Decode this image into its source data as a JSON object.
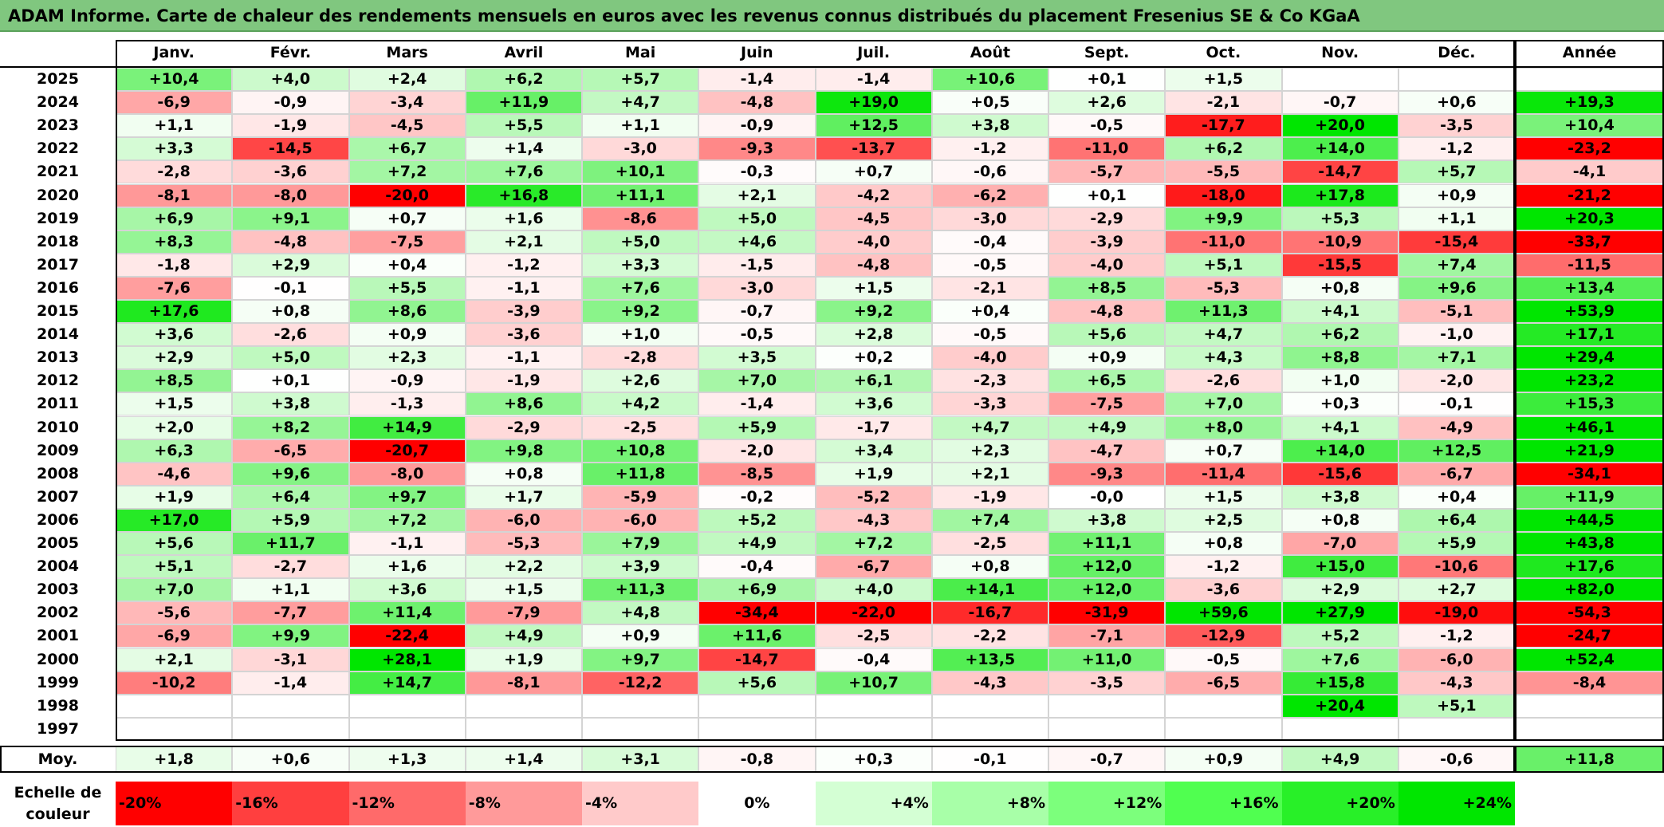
{
  "title": "ADAM Informe. Carte de chaleur des rendements mensuels en euros avec les revenus connus distribués du placement Fresenius SE & Co KGaA",
  "chart_data": {
    "type": "heatmap",
    "columns": [
      "Janv.",
      "Févr.",
      "Mars",
      "Avril",
      "Mai",
      "Juin",
      "Juil.",
      "Août",
      "Sept.",
      "Oct.",
      "Nov.",
      "Déc."
    ],
    "year_column": "Année",
    "rows": [
      {
        "label": "2025",
        "values": [
          "+10,4",
          "+4,0",
          "+2,4",
          "+6,2",
          "+5,7",
          "-1,4",
          "-1,4",
          "+10,6",
          "+0,1",
          "+1,5",
          "",
          ""
        ],
        "year": ""
      },
      {
        "label": "2024",
        "values": [
          "-6,9",
          "-0,9",
          "-3,4",
          "+11,9",
          "+4,7",
          "-4,8",
          "+19,0",
          "+0,5",
          "+2,6",
          "-2,1",
          "-0,7",
          "+0,6"
        ],
        "year": "+19,3"
      },
      {
        "label": "2023",
        "values": [
          "+1,1",
          "-1,9",
          "-4,5",
          "+5,5",
          "+1,1",
          "-0,9",
          "+12,5",
          "+3,8",
          "-0,5",
          "-17,7",
          "+20,0",
          "-3,5"
        ],
        "year": "+10,4"
      },
      {
        "label": "2022",
        "values": [
          "+3,3",
          "-14,5",
          "+6,7",
          "+1,4",
          "-3,0",
          "-9,3",
          "-13,7",
          "-1,2",
          "-11,0",
          "+6,2",
          "+14,0",
          "-1,2"
        ],
        "year": "-23,2"
      },
      {
        "label": "2021",
        "values": [
          "-2,8",
          "-3,6",
          "+7,2",
          "+7,6",
          "+10,1",
          "-0,3",
          "+0,7",
          "-0,6",
          "-5,7",
          "-5,5",
          "-14,7",
          "+5,7"
        ],
        "year": "-4,1"
      },
      {
        "label": "2020",
        "values": [
          "-8,1",
          "-8,0",
          "-20,0",
          "+16,8",
          "+11,1",
          "+2,1",
          "-4,2",
          "-6,2",
          "+0,1",
          "-18,0",
          "+17,8",
          "+0,9"
        ],
        "year": "-21,2"
      },
      {
        "label": "2019",
        "values": [
          "+6,9",
          "+9,1",
          "+0,7",
          "+1,6",
          "-8,6",
          "+5,0",
          "-4,5",
          "-3,0",
          "-2,9",
          "+9,9",
          "+5,3",
          "+1,1"
        ],
        "year": "+20,3"
      },
      {
        "label": "2018",
        "values": [
          "+8,3",
          "-4,8",
          "-7,5",
          "+2,1",
          "+5,0",
          "+4,6",
          "-4,0",
          "-0,4",
          "-3,9",
          "-11,0",
          "-10,9",
          "-15,4"
        ],
        "year": "-33,7"
      },
      {
        "label": "2017",
        "values": [
          "-1,8",
          "+2,9",
          "+0,4",
          "-1,2",
          "+3,3",
          "-1,5",
          "-4,8",
          "-0,5",
          "-4,0",
          "+5,1",
          "-15,5",
          "+7,4"
        ],
        "year": "-11,5"
      },
      {
        "label": "2016",
        "values": [
          "-7,6",
          "-0,1",
          "+5,5",
          "-1,1",
          "+7,6",
          "-3,0",
          "+1,5",
          "-2,1",
          "+8,5",
          "-5,3",
          "+0,8",
          "+9,6"
        ],
        "year": "+13,4"
      },
      {
        "label": "2015",
        "values": [
          "+17,6",
          "+0,8",
          "+8,6",
          "-3,9",
          "+9,2",
          "-0,7",
          "+9,2",
          "+0,4",
          "-4,8",
          "+11,3",
          "+4,1",
          "-5,1"
        ],
        "year": "+53,9"
      },
      {
        "label": "2014",
        "values": [
          "+3,6",
          "-2,6",
          "+0,9",
          "-3,6",
          "+1,0",
          "-0,5",
          "+2,8",
          "-0,5",
          "+5,6",
          "+4,7",
          "+6,2",
          "-1,0"
        ],
        "year": "+17,1"
      },
      {
        "label": "2013",
        "values": [
          "+2,9",
          "+5,0",
          "+2,3",
          "-1,1",
          "-2,8",
          "+3,5",
          "+0,2",
          "-4,0",
          "+0,9",
          "+4,3",
          "+8,8",
          "+7,1"
        ],
        "year": "+29,4"
      },
      {
        "label": "2012",
        "values": [
          "+8,5",
          "+0,1",
          "-0,9",
          "-1,9",
          "+2,6",
          "+7,0",
          "+6,1",
          "-2,3",
          "+6,5",
          "-2,6",
          "+1,0",
          "-2,0"
        ],
        "year": "+23,2"
      },
      {
        "label": "2011",
        "values": [
          "+1,5",
          "+3,8",
          "-1,3",
          "+8,6",
          "+4,2",
          "-1,4",
          "+3,6",
          "-3,3",
          "-7,5",
          "+7,0",
          "+0,3",
          "-0,1"
        ],
        "year": "+15,3"
      },
      {
        "label": "2010",
        "values": [
          "+2,0",
          "+8,2",
          "+14,9",
          "-2,9",
          "-2,5",
          "+5,9",
          "-1,7",
          "+4,7",
          "+4,9",
          "+8,0",
          "+4,1",
          "-4,9"
        ],
        "year": "+46,1"
      },
      {
        "label": "2009",
        "values": [
          "+6,3",
          "-6,5",
          "-20,7",
          "+9,8",
          "+10,8",
          "-2,0",
          "+3,4",
          "+2,3",
          "-4,7",
          "+0,7",
          "+14,0",
          "+12,5"
        ],
        "year": "+21,9"
      },
      {
        "label": "2008",
        "values": [
          "-4,6",
          "+9,6",
          "-8,0",
          "+0,8",
          "+11,8",
          "-8,5",
          "+1,9",
          "+2,1",
          "-9,3",
          "-11,4",
          "-15,6",
          "-6,7"
        ],
        "year": "-34,1"
      },
      {
        "label": "2007",
        "values": [
          "+1,9",
          "+6,4",
          "+9,7",
          "+1,7",
          "-5,9",
          "-0,2",
          "-5,2",
          "-1,9",
          "-0,0",
          "+1,5",
          "+3,8",
          "+0,4"
        ],
        "year": "+11,9"
      },
      {
        "label": "2006",
        "values": [
          "+17,0",
          "+5,9",
          "+7,2",
          "-6,0",
          "-6,0",
          "+5,2",
          "-4,3",
          "+7,4",
          "+3,8",
          "+2,5",
          "+0,8",
          "+6,4"
        ],
        "year": "+44,5"
      },
      {
        "label": "2005",
        "values": [
          "+5,6",
          "+11,7",
          "-1,1",
          "-5,3",
          "+7,9",
          "+4,9",
          "+7,2",
          "-2,5",
          "+11,1",
          "+0,8",
          "-7,0",
          "+5,9"
        ],
        "year": "+43,8"
      },
      {
        "label": "2004",
        "values": [
          "+5,1",
          "-2,7",
          "+1,6",
          "+2,2",
          "+3,9",
          "-0,4",
          "-6,7",
          "+0,8",
          "+12,0",
          "-1,2",
          "+15,0",
          "-10,6"
        ],
        "year": "+17,6"
      },
      {
        "label": "2003",
        "values": [
          "+7,0",
          "+1,1",
          "+3,6",
          "+1,5",
          "+11,3",
          "+6,9",
          "+4,0",
          "+14,1",
          "+12,0",
          "-3,6",
          "+2,9",
          "+2,7"
        ],
        "year": "+82,0"
      },
      {
        "label": "2002",
        "values": [
          "-5,6",
          "-7,7",
          "+11,4",
          "-7,9",
          "+4,8",
          "-34,4",
          "-22,0",
          "-16,7",
          "-31,9",
          "+59,6",
          "+27,9",
          "-19,0"
        ],
        "year": "-54,3"
      },
      {
        "label": "2001",
        "values": [
          "-6,9",
          "+9,9",
          "-22,4",
          "+4,9",
          "+0,9",
          "+11,6",
          "-2,5",
          "-2,2",
          "-7,1",
          "-12,9",
          "+5,2",
          "-1,2"
        ],
        "year": "-24,7"
      },
      {
        "label": "2000",
        "values": [
          "+2,1",
          "-3,1",
          "+28,1",
          "+1,9",
          "+9,7",
          "-14,7",
          "-0,4",
          "+13,5",
          "+11,0",
          "-0,5",
          "+7,6",
          "-6,0"
        ],
        "year": "+52,4"
      },
      {
        "label": "1999",
        "values": [
          "-10,2",
          "-1,4",
          "+14,7",
          "-8,1",
          "-12,2",
          "+5,6",
          "+10,7",
          "-4,3",
          "-3,5",
          "-6,5",
          "+15,8",
          "-4,3"
        ],
        "year": "-8,4"
      },
      {
        "label": "1998",
        "values": [
          "",
          "",
          "",
          "",
          "",
          "",
          "",
          "",
          "",
          "",
          "+20,4",
          "+5,1"
        ],
        "year": ""
      },
      {
        "label": "1997",
        "values": [
          "",
          "",
          "",
          "",
          "",
          "",
          "",
          "",
          "",
          "",
          "",
          ""
        ],
        "year": ""
      }
    ],
    "average": {
      "label": "Moy.",
      "values": [
        "+1,8",
        "+0,6",
        "+1,3",
        "+1,4",
        "+3,1",
        "-0,8",
        "+0,3",
        "-0,1",
        "-0,7",
        "+0,9",
        "+4,9",
        "-0,6"
      ],
      "year": "+11,8"
    },
    "color_scale": {
      "label": "Echelle de couleur",
      "steps": [
        {
          "label": "-20%",
          "value": -20,
          "color": "#ff0000"
        },
        {
          "label": "-16%",
          "value": -16,
          "color": "#ff3f3f"
        },
        {
          "label": "-12%",
          "value": -12,
          "color": "#ff6a6a"
        },
        {
          "label": "-8%",
          "value": -8,
          "color": "#ff9a9a"
        },
        {
          "label": "-4%",
          "value": -4,
          "color": "#ffcaca"
        },
        {
          "label": "0%",
          "value": 0,
          "color": "#ffffff"
        },
        {
          "label": "+4%",
          "value": 4,
          "color": "#d4ffd4"
        },
        {
          "label": "+8%",
          "value": 8,
          "color": "#a8ffa8"
        },
        {
          "label": "+12%",
          "value": 12,
          "color": "#7cff7c"
        },
        {
          "label": "+16%",
          "value": 16,
          "color": "#50ff50"
        },
        {
          "label": "+20%",
          "value": 20,
          "color": "#28f028"
        },
        {
          "label": "+24%",
          "value": 24,
          "color": "#00e600"
        }
      ]
    }
  }
}
